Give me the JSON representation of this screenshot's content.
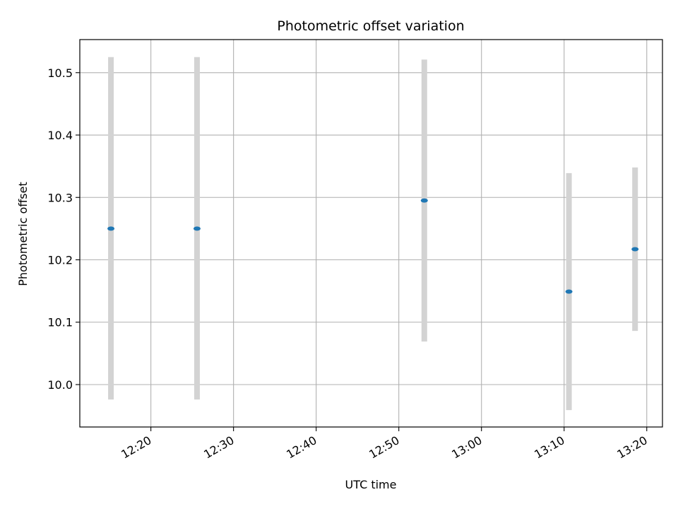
{
  "chart_data": {
    "type": "scatter",
    "title": "Photometric offset variation",
    "xlabel": "UTC time",
    "ylabel": "Photometric offset",
    "grid": true,
    "x_ticks": [
      "12:20",
      "12:30",
      "12:40",
      "12:50",
      "13:00",
      "13:10",
      "13:20"
    ],
    "y_ticks": [
      "10.0",
      "10.1",
      "10.2",
      "10.3",
      "10.4",
      "10.5"
    ],
    "xlim": [
      "12:11:24",
      "13:21:54"
    ],
    "ylim": [
      9.932,
      10.553
    ],
    "points": [
      {
        "x": "12:15:10",
        "y": 10.25,
        "yerr_low": 9.976,
        "yerr_high": 10.525
      },
      {
        "x": "12:25:35",
        "y": 10.25,
        "yerr_low": 9.976,
        "yerr_high": 10.525
      },
      {
        "x": "12:53:05",
        "y": 10.295,
        "yerr_low": 10.069,
        "yerr_high": 10.521
      },
      {
        "x": "13:10:35",
        "y": 10.149,
        "yerr_low": 9.959,
        "yerr_high": 10.339
      },
      {
        "x": "13:18:35",
        "y": 10.217,
        "yerr_low": 10.086,
        "yerr_high": 10.348
      }
    ],
    "colors": {
      "marker": "#1f77b4",
      "errorbar": "#d3d3d3",
      "grid": "#b0b0b0",
      "axes": "#000000"
    }
  }
}
